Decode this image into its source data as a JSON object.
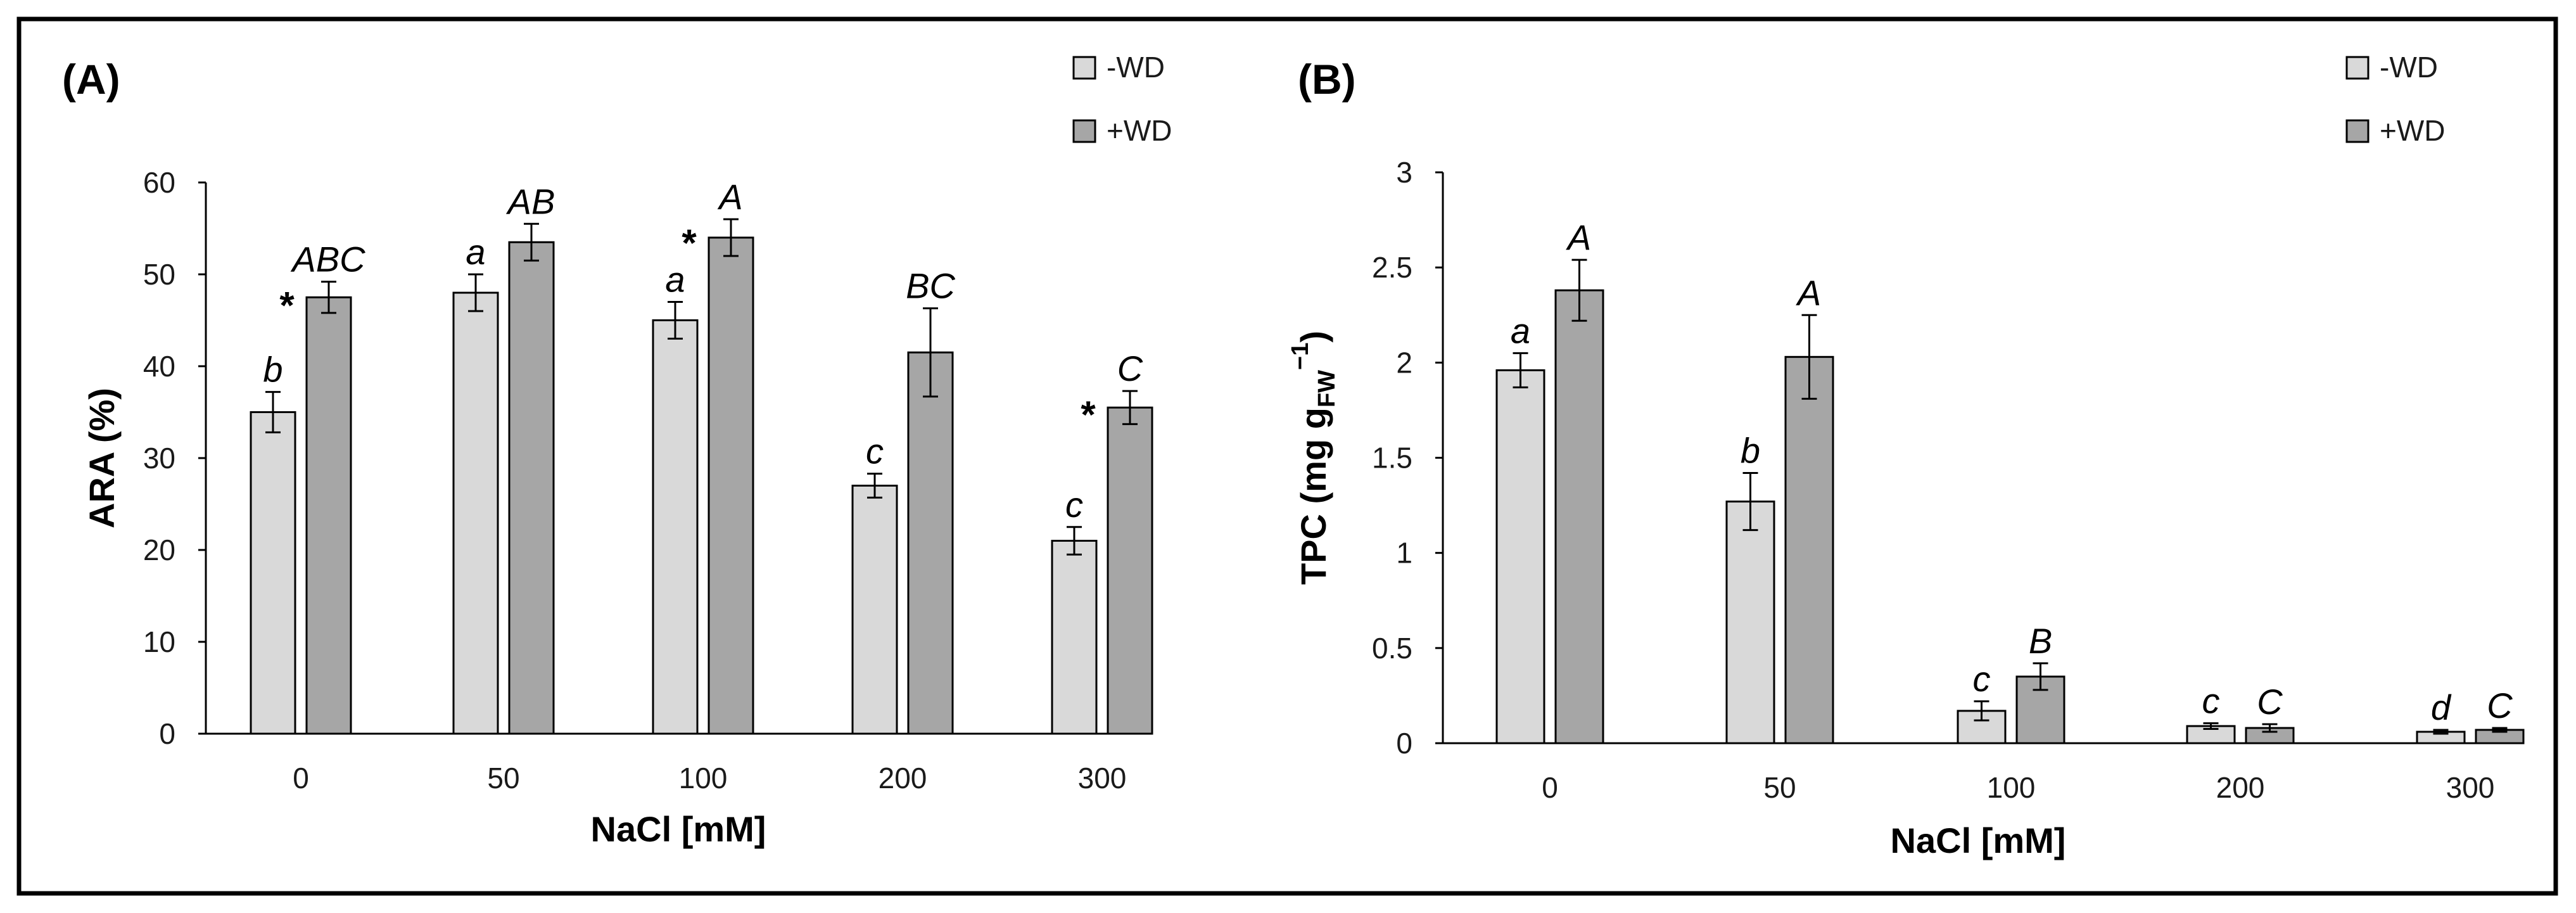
{
  "chart_data": [
    {
      "type": "bar",
      "panel_label": "(A)",
      "title": "",
      "xlabel": "NaCl [mM]",
      "ylabel": "ARA (%)",
      "ylim": [
        0,
        60
      ],
      "yticks": [
        "0",
        "10",
        "20",
        "30",
        "40",
        "50",
        "60"
      ],
      "categories": [
        "0",
        "50",
        "100",
        "200",
        "300"
      ],
      "legend_position": "top-right",
      "series": [
        {
          "name": "-WD",
          "color": "#d9d9d9",
          "values": [
            35,
            48,
            45,
            27,
            21
          ],
          "errors": [
            2.2,
            2.0,
            2.0,
            1.3,
            1.5
          ],
          "labels": [
            "b",
            "a",
            "a",
            "c",
            "c"
          ]
        },
        {
          "name": "+WD",
          "color": "#a6a6a6",
          "values": [
            47.5,
            53.5,
            54,
            41.5,
            35.5
          ],
          "errors": [
            1.7,
            2.0,
            2.0,
            4.8,
            1.8
          ],
          "labels": [
            "ABC",
            "AB",
            "A",
            "BC",
            "C"
          ]
        }
      ],
      "stars": [
        true,
        false,
        true,
        false,
        true
      ],
      "star_symbol": "*"
    },
    {
      "type": "bar",
      "panel_label": "(B)",
      "title": "",
      "xlabel": "NaCl [mM]",
      "ylabel_main": "TPC (mg g",
      "ylabel_sub": "FW",
      "ylabel_sup": "−1",
      "ylabel_close": ")",
      "ylim": [
        0,
        3
      ],
      "yticks": [
        "0",
        "0.5",
        "1",
        "1.5",
        "2",
        "2.5",
        "3"
      ],
      "categories": [
        "0",
        "50",
        "100",
        "200",
        "300"
      ],
      "legend_position": "top-right",
      "series": [
        {
          "name": "-WD",
          "color": "#d9d9d9",
          "values": [
            1.96,
            1.27,
            0.17,
            0.09,
            0.06
          ],
          "errors": [
            0.09,
            0.15,
            0.05,
            0.015,
            0.01
          ],
          "labels": [
            "a",
            "b",
            "c",
            "c",
            "d"
          ]
        },
        {
          "name": "+WD",
          "color": "#a6a6a6",
          "values": [
            2.38,
            2.03,
            0.35,
            0.08,
            0.07
          ],
          "errors": [
            0.16,
            0.22,
            0.07,
            0.02,
            0.01
          ],
          "labels": [
            "A",
            "A",
            "B",
            "C",
            "C"
          ]
        }
      ],
      "stars": [
        false,
        false,
        false,
        false,
        false
      ],
      "star_symbol": "*"
    }
  ]
}
